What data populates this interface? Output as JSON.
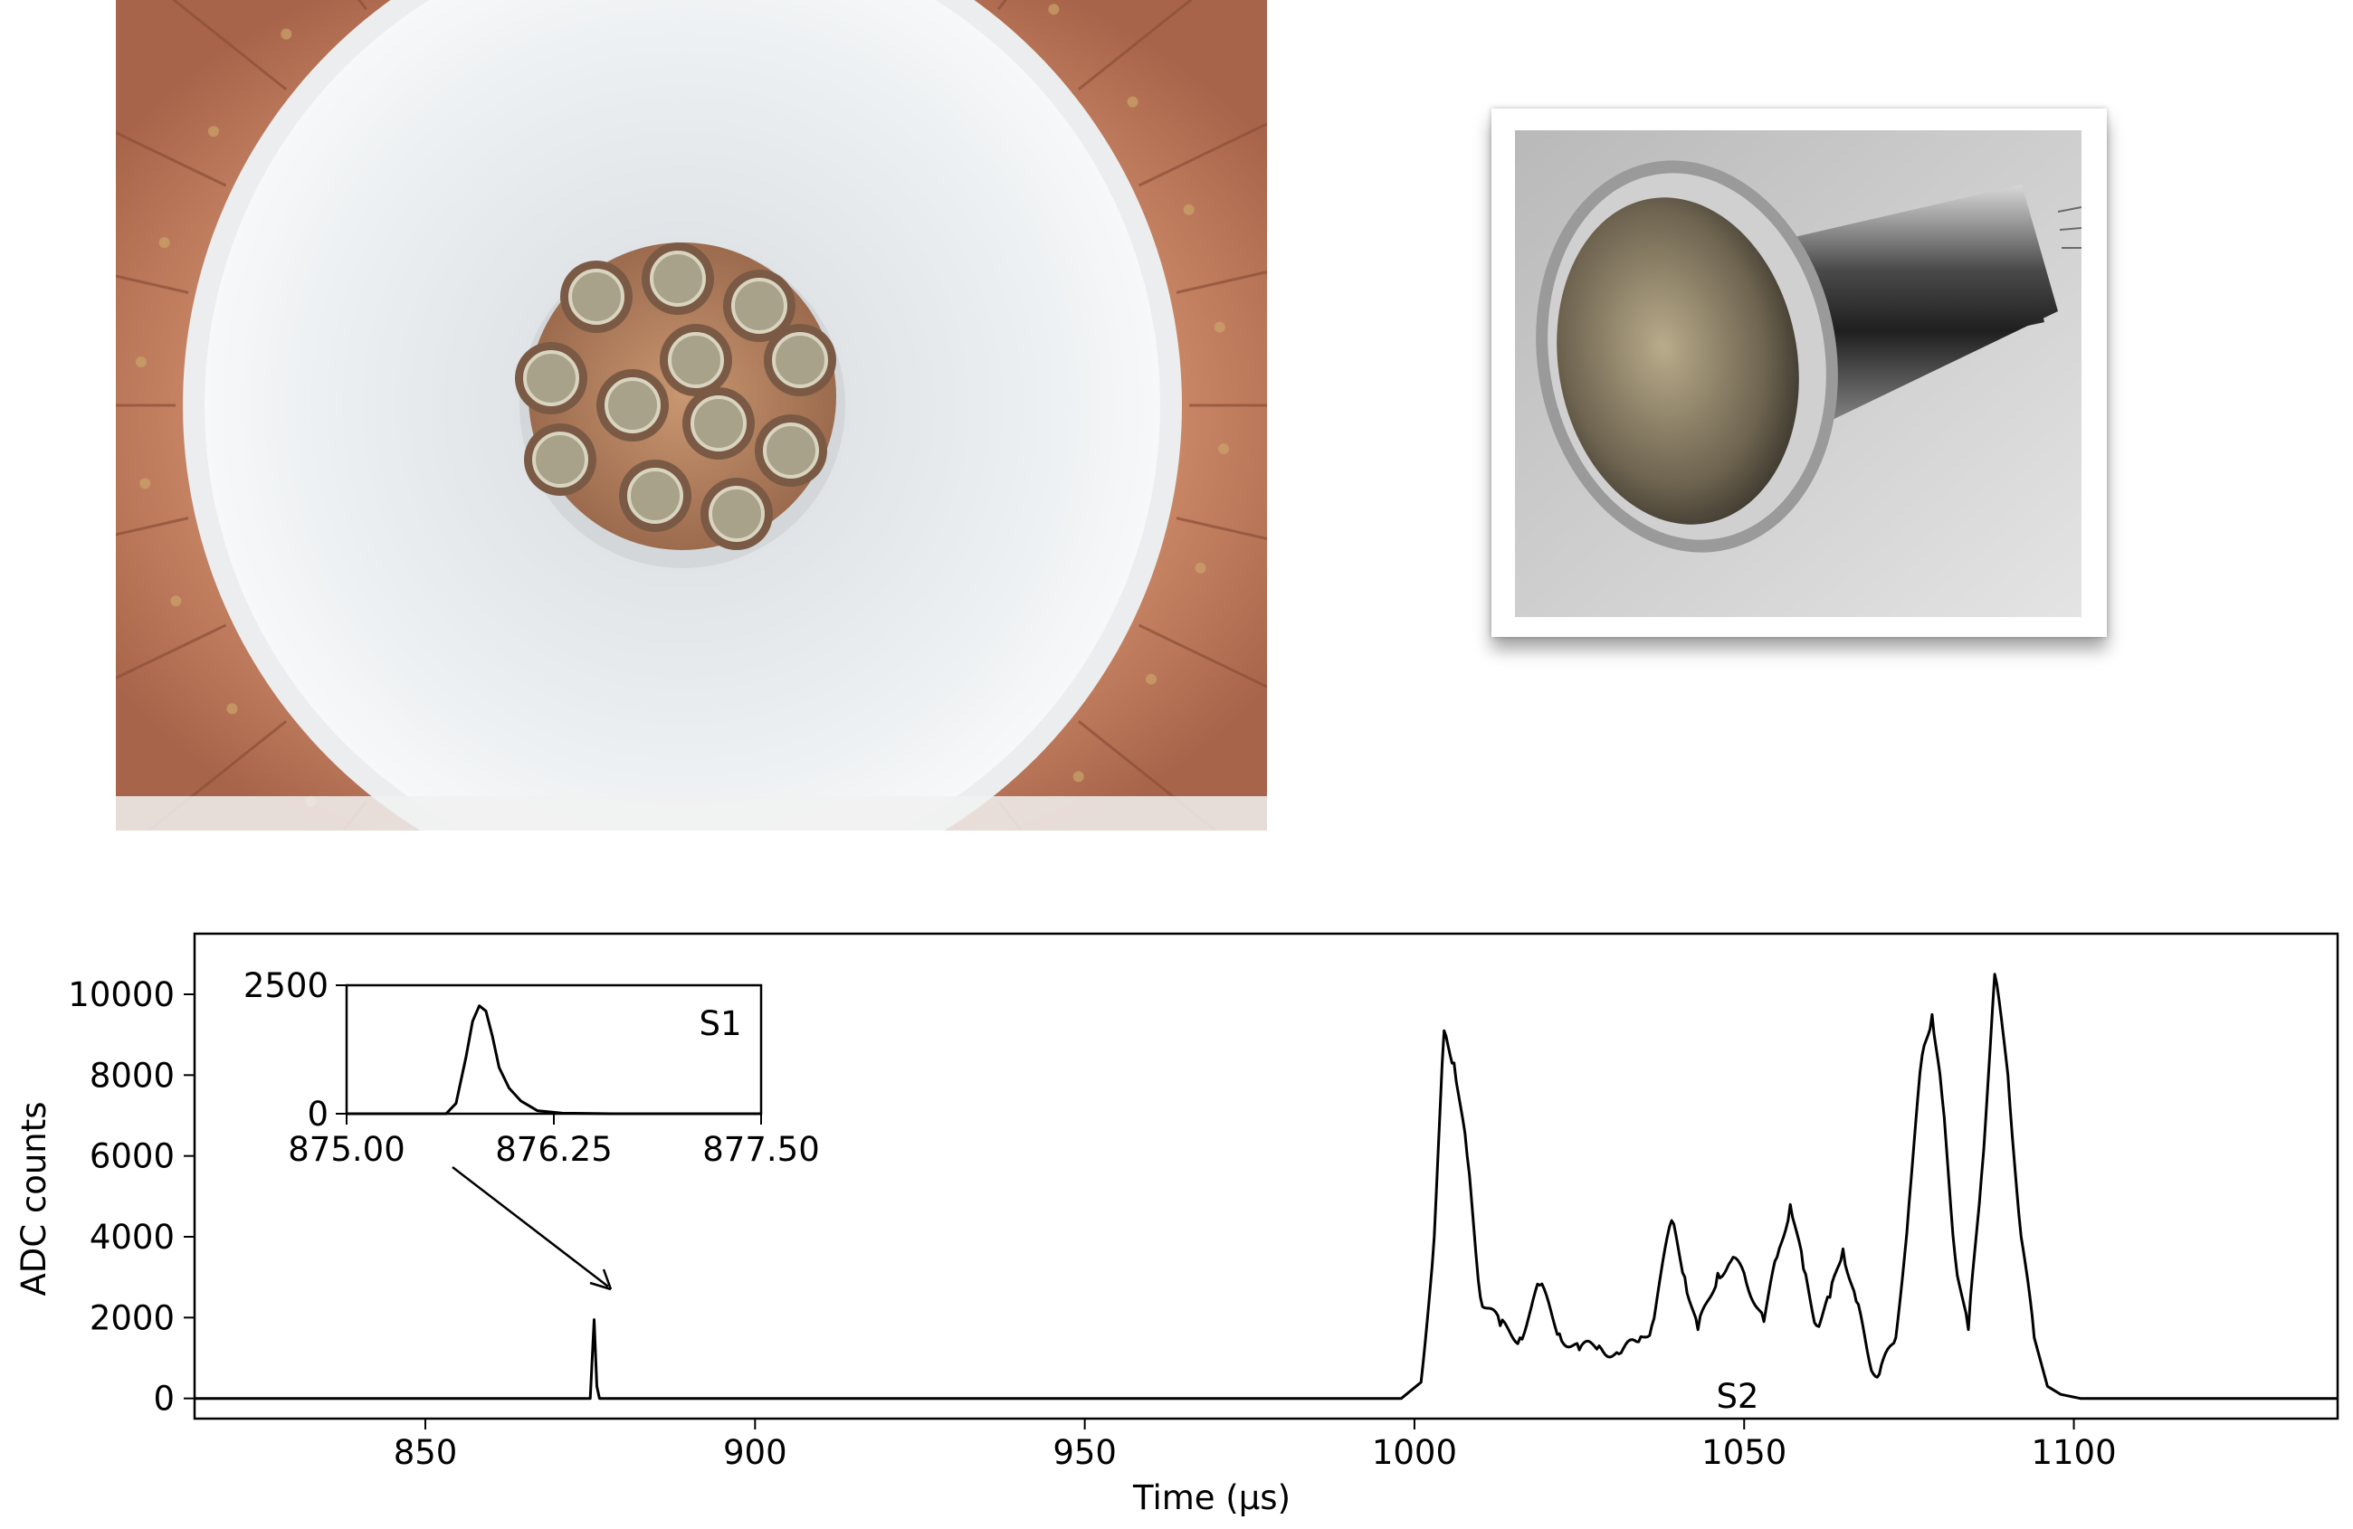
{
  "photos": {
    "tpc": {
      "description_icon": "tpc-interior-photo"
    },
    "pmt": {
      "description_icon": "pmt-photo"
    }
  },
  "chart_data": [
    {
      "type": "line",
      "xlabel": "Time (μs)",
      "ylabel": "ADC counts",
      "xlim": [
        815,
        1140
      ],
      "ylim": [
        -500,
        11500
      ],
      "xticks": [
        850,
        900,
        950,
        1000,
        1050,
        1100
      ],
      "yticks": [
        0,
        2000,
        4000,
        6000,
        8000,
        10000
      ],
      "annotations": [
        "S2"
      ],
      "series": [
        {
          "x": [
            815,
            875,
            875.6,
            876,
            876.4,
            877,
            968,
            969,
            998,
            1001,
            1003,
            1004.5,
            1006,
            1008,
            1010,
            1013,
            1016,
            1019,
            1022,
            1025,
            1028,
            1031,
            1034,
            1036,
            1039,
            1041,
            1043,
            1046,
            1048,
            1050,
            1053,
            1055,
            1057,
            1059,
            1061,
            1063,
            1065,
            1067,
            1069,
            1070.5,
            1073,
            1075,
            1077,
            1078.5,
            1080,
            1082,
            1084,
            1086,
            1088,
            1090,
            1092,
            1094,
            1096,
            1098,
            1101,
            1110,
            1140
          ],
          "y": [
            0,
            0,
            1950,
            300,
            0,
            0,
            0,
            0,
            0,
            400,
            4000,
            9100,
            8300,
            6000,
            2500,
            1800,
            1500,
            2800,
            1600,
            1200,
            1300,
            1100,
            1400,
            1800,
            4400,
            3000,
            1700,
            3100,
            3400,
            3100,
            1900,
            3500,
            4800,
            3200,
            1800,
            2500,
            3700,
            2400,
            900,
            600,
            1500,
            4800,
            8500,
            9500,
            7500,
            3500,
            1700,
            5500,
            10500,
            8000,
            4000,
            1500,
            300,
            100,
            0,
            0,
            0
          ]
        }
      ]
    },
    {
      "type": "line",
      "title": "S1",
      "xlim": [
        875.0,
        877.5
      ],
      "ylim": [
        0,
        2500
      ],
      "xticks": [
        "875.00",
        "876.25",
        "877.50"
      ],
      "yticks": [
        "0",
        "2500"
      ],
      "series": [
        {
          "x": [
            875.0,
            875.6,
            875.66,
            875.72,
            875.76,
            875.8,
            875.84,
            875.88,
            875.92,
            875.98,
            876.05,
            876.15,
            876.3,
            876.6,
            877.5
          ],
          "y": [
            0,
            0,
            200,
            1100,
            1800,
            2100,
            2000,
            1500,
            900,
            500,
            250,
            60,
            10,
            0,
            0
          ]
        }
      ]
    }
  ]
}
